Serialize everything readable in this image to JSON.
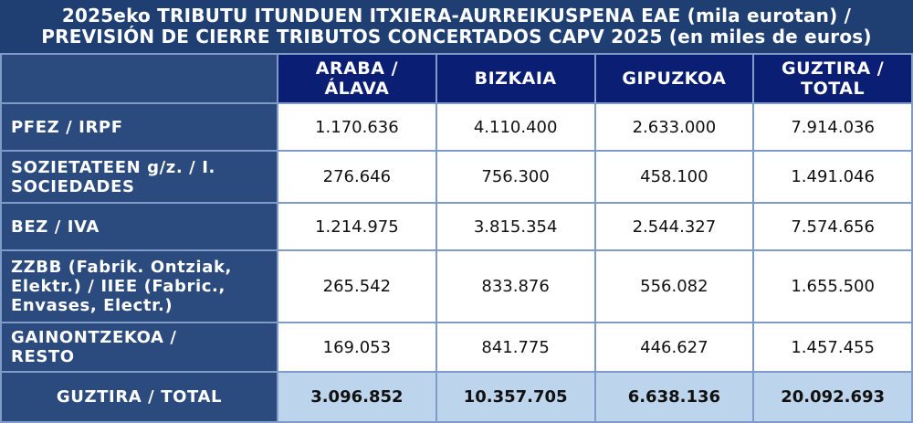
{
  "title": {
    "line1": "2025eko TRIBUTU ITUNDUEN ITXIERA-AURREIKUSPENA EAE (mila eurotan) /",
    "line2": "PREVISIÓN DE CIERRE TRIBUTOS CONCERTADOS CAPV 2025 (en miles de euros)"
  },
  "columns": [
    {
      "line1": "ARABA /",
      "line2": "ÁLAVA"
    },
    {
      "line1": "BIZKAIA",
      "line2": ""
    },
    {
      "line1": "GIPUZKOA",
      "line2": ""
    },
    {
      "line1": "GUZTIRA /",
      "line2": "TOTAL"
    }
  ],
  "rows": [
    {
      "label": [
        "PFEZ / IRPF"
      ],
      "values": [
        "1.170.636",
        "4.110.400",
        "2.633.000",
        "7.914.036"
      ]
    },
    {
      "label": [
        "SOZIETATEEN g/z. / I.",
        "SOCIEDADES"
      ],
      "values": [
        "276.646",
        "756.300",
        "458.100",
        "1.491.046"
      ]
    },
    {
      "label": [
        "BEZ / IVA"
      ],
      "values": [
        "1.214.975",
        "3.815.354",
        "2.544.327",
        "7.574.656"
      ]
    },
    {
      "label": [
        "ZZBB (Fabrik. Ontziak,",
        "Elektr.) / IIEE (Fabric.,",
        "Envases, Electr.)"
      ],
      "values": [
        "265.542",
        "833.876",
        "556.082",
        "1.655.500"
      ]
    },
    {
      "label": [
        "GAINONTZEKOA /",
        "RESTO"
      ],
      "values": [
        "169.053",
        "841.775",
        "446.627",
        "1.457.455"
      ]
    }
  ],
  "total": {
    "label": "GUZTIRA / TOTAL",
    "values": [
      "3.096.852",
      "10.357.705",
      "6.638.136",
      "20.092.693"
    ]
  }
}
